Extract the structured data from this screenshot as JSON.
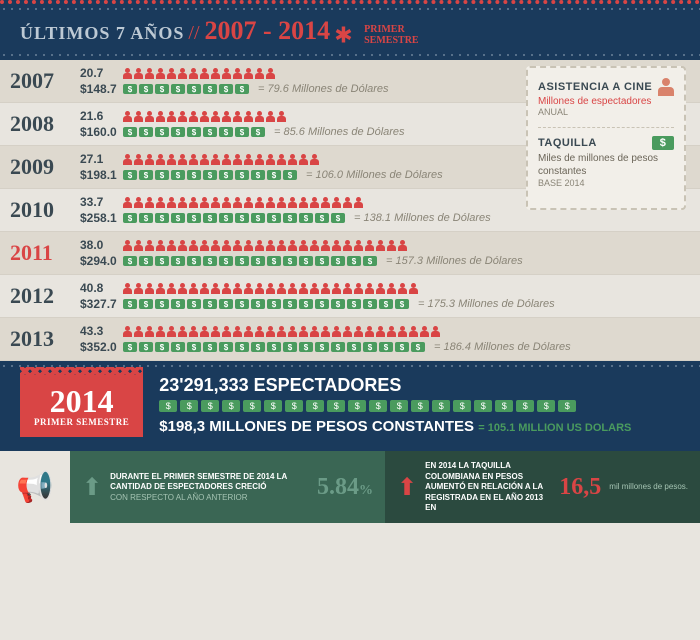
{
  "header": {
    "title": "ÚLTIMOS 7 AÑOS",
    "years": "2007 - 2014",
    "badge_l1": "PRIMER",
    "badge_l2": "SEMESTRE"
  },
  "colors": {
    "header_bg": "#1a3a5c",
    "accent": "#d94545",
    "green": "#4a9b5e",
    "row_bg": "#e8e5df"
  },
  "years": [
    {
      "year": "2007",
      "spectators": "20.7",
      "box": "$148.7",
      "people": 14,
      "tickets": 8,
      "usd": "= 79.6 Millones de Dólares"
    },
    {
      "year": "2008",
      "spectators": "21.6",
      "box": "$160.0",
      "people": 15,
      "tickets": 9,
      "usd": "= 85.6 Millones de Dólares"
    },
    {
      "year": "2009",
      "spectators": "27.1",
      "box": "$198.1",
      "people": 18,
      "tickets": 11,
      "usd": "= 106.0 Millones de Dólares"
    },
    {
      "year": "2010",
      "spectators": "33.7",
      "box": "$258.1",
      "people": 22,
      "tickets": 14,
      "usd": "= 138.1 Millones de Dólares"
    },
    {
      "year": "2011",
      "spectators": "38.0",
      "box": "$294.0",
      "people": 26,
      "tickets": 16,
      "usd": "= 157.3 Millones de Dólares",
      "current": true
    },
    {
      "year": "2012",
      "spectators": "40.8",
      "box": "$327.7",
      "people": 27,
      "tickets": 18,
      "usd": "= 175.3 Millones de Dólares"
    },
    {
      "year": "2013",
      "spectators": "43.3",
      "box": "$352.0",
      "people": 29,
      "tickets": 19,
      "usd": "= 186.4 Millones de Dólares"
    }
  ],
  "legend": {
    "t1": "ASISTENCIA A CINE",
    "s1": "Millones de espectadores",
    "u1": "ANUAL",
    "t2": "TAQUILLA",
    "s2": "Miles de millones de pesos constantes",
    "u2": "Base 2014"
  },
  "f2014": {
    "year": "2014",
    "sub": "PRIMER SEMESTRE",
    "spec": "23'291,333 ESPECTADORES",
    "tickets": 20,
    "money": "$198,3 MILLONES DE PESOS CONSTANTES",
    "usd": "= 105.1 MILLION US DOLARS"
  },
  "stats": {
    "s1_text": "DURANTE EL PRIMER SEMESTRE DE 2014 LA CANTIDAD DE ESPECTADORES CRECIÓ",
    "s1_sub": "con respecto al año anterior",
    "s1_num": "5.84",
    "s1_pct": "%",
    "s2_text": "EN 2014 LA TAQUILLA COLOMBIANA EN PESOS AUMENTÓ EN RELACIÓN A LA REGISTRADA EN EL AÑO 2013 EN",
    "s2_num": "16,5",
    "s2_unit": "mil millones de pesos."
  }
}
